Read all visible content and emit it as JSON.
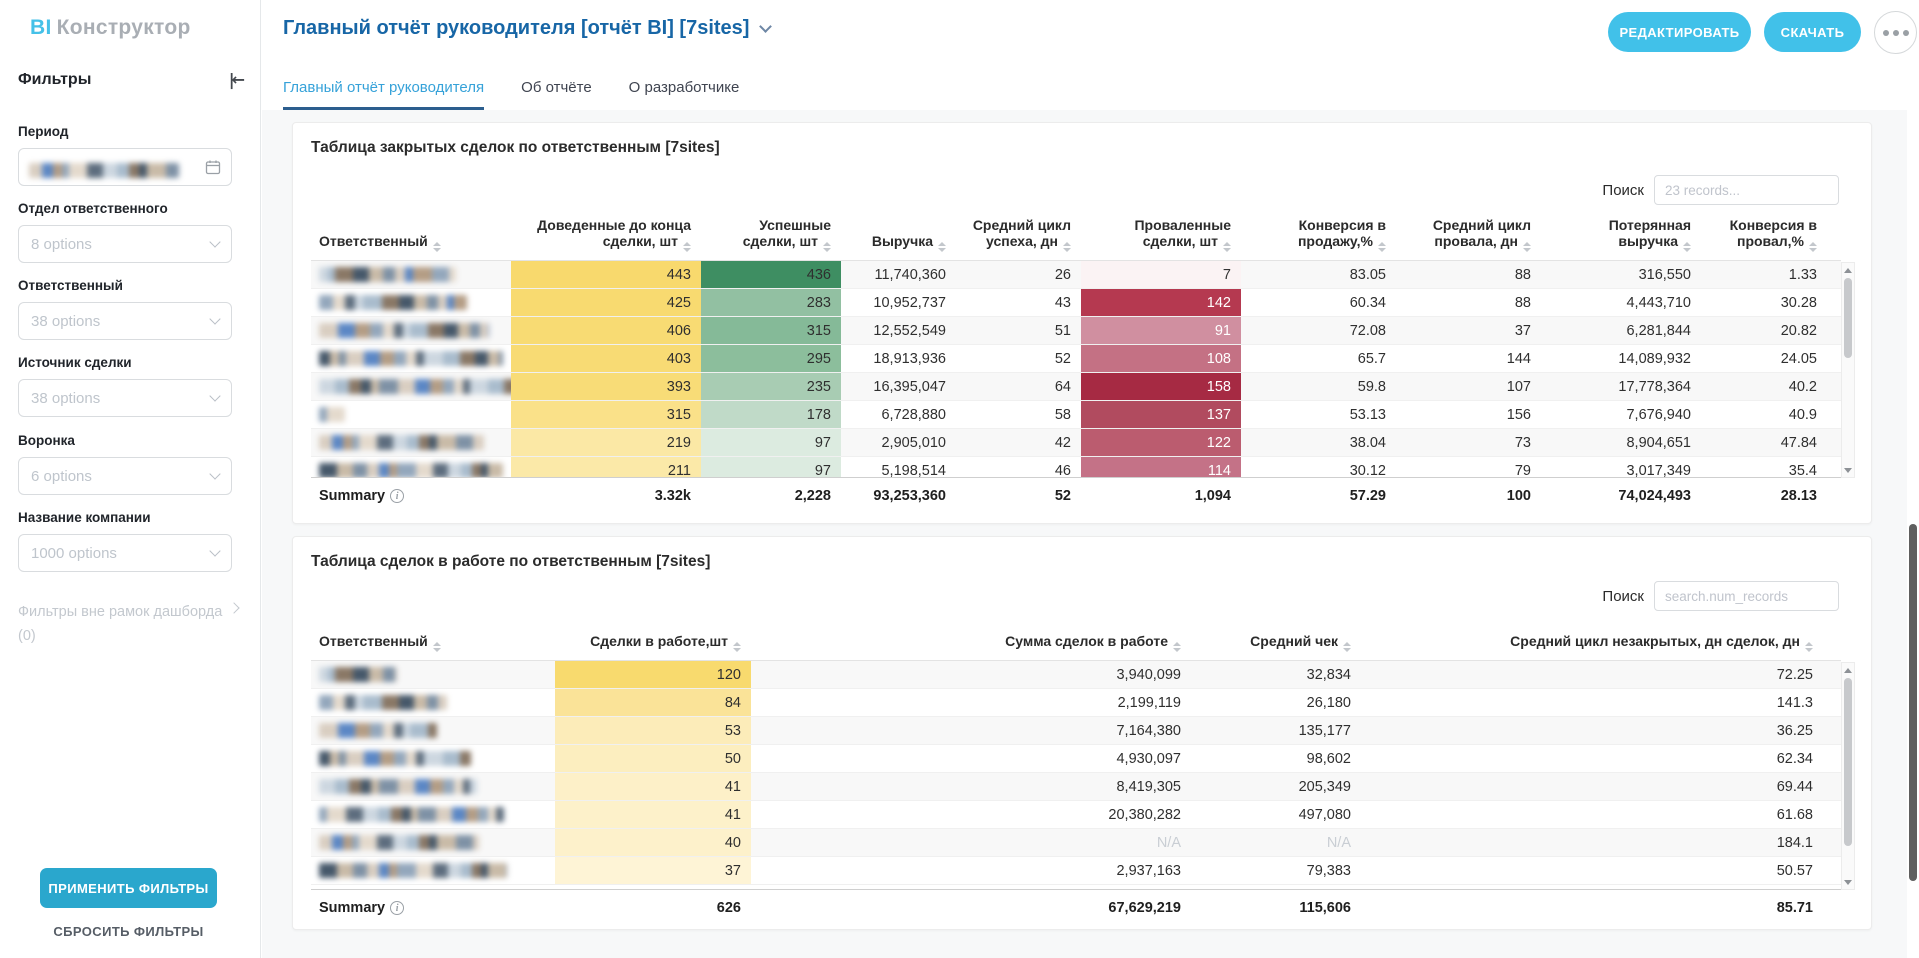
{
  "brand": {
    "bi": "BI",
    "name": "Конструктор"
  },
  "header": {
    "title": "Главный отчёт руководителя [отчёт BI] [7sites]",
    "edit_button": "РЕДАКТИРОВАТЬ",
    "download_button": "СКАЧАТЬ"
  },
  "tabs": [
    {
      "label": "Главный отчёт руководителя",
      "active": true
    },
    {
      "label": "Об отчёте",
      "active": false
    },
    {
      "label": "О разработчике",
      "active": false
    }
  ],
  "sidebar": {
    "title": "Фильтры",
    "filters": [
      {
        "label": "Период",
        "type": "date",
        "value": ""
      },
      {
        "label": "Отдел ответственного",
        "type": "select",
        "value": "8 options"
      },
      {
        "label": "Ответственный",
        "type": "select",
        "value": "38 options"
      },
      {
        "label": "Источник сделки",
        "type": "select",
        "value": "38 options"
      },
      {
        "label": "Воронка",
        "type": "select",
        "value": "6 options"
      },
      {
        "label": "Название компании",
        "type": "select",
        "value": "1000 options"
      }
    ],
    "external_filters_label": "Фильтры вне рамок дашборда",
    "external_filters_count": "(0)",
    "apply_button": "ПРИМЕНИТЬ ФИЛЬТРЫ",
    "reset_button": "СБРОСИТЬ ФИЛЬТРЫ"
  },
  "colors": {
    "accent_blue": "#41c1e9",
    "apply_button_blue": "#2aa7cd",
    "title_blue": "#1766a6",
    "active_tab_blue": "#36a2d9",
    "tab_underline": "#2c5e8e"
  },
  "table1": {
    "title": "Таблица закрытых сделок по ответственным [7sites]",
    "search_label": "Поиск",
    "search_placeholder": "23 records...",
    "columns": [
      "Ответственный",
      "Доведенные до конца сделки, шт",
      "Успешные сделки, шт",
      "Выручка",
      "Средний цикл успеха, дн",
      "Проваленные сделки, шт",
      "Конверсия в продажу,%",
      "Средний цикл провала, дн",
      "Потерянная выручка",
      "Конверсия в провал,%"
    ],
    "rows": [
      {
        "values": [
          "443",
          "436",
          "11,740,360",
          "26",
          "7",
          "83.05",
          "88",
          "316,550",
          "1.33"
        ],
        "done_bg": "#f8d96d",
        "success_bg": "#3e8e62",
        "failed_bg": "#fbf3f4",
        "failed_light_text": false
      },
      {
        "values": [
          "425",
          "283",
          "10,952,737",
          "43",
          "142",
          "60.34",
          "88",
          "4,443,710",
          "30.28"
        ],
        "done_bg": "#f8da70",
        "success_bg": "#92c0a2",
        "failed_bg": "#b53950",
        "failed_light_text": true
      },
      {
        "values": [
          "406",
          "315",
          "12,552,549",
          "51",
          "91",
          "72.08",
          "37",
          "6,281,844",
          "20.82"
        ],
        "done_bg": "#f8db73",
        "success_bg": "#85ba98",
        "failed_bg": "#d08fa0",
        "failed_light_text": true
      },
      {
        "values": [
          "403",
          "295",
          "18,913,936",
          "52",
          "108",
          "65.7",
          "144",
          "14,089,932",
          "24.05"
        ],
        "done_bg": "#f8db74",
        "success_bg": "#8cbe9c",
        "failed_bg": "#c47184",
        "failed_light_text": true
      },
      {
        "values": [
          "393",
          "235",
          "16,395,047",
          "64",
          "158",
          "59.8",
          "107",
          "17,778,364",
          "40.2"
        ],
        "done_bg": "#f8dc77",
        "success_bg": "#a8ccb3",
        "failed_bg": "#a62a43",
        "failed_light_text": true
      },
      {
        "values": [
          "315",
          "178",
          "6,728,880",
          "58",
          "137",
          "53.13",
          "156",
          "7,676,940",
          "40.9"
        ],
        "done_bg": "#fae189",
        "success_bg": "#c0dac8",
        "failed_bg": "#b14b5f",
        "failed_light_text": true
      },
      {
        "values": [
          "219",
          "97",
          "2,905,010",
          "42",
          "122",
          "38.04",
          "73",
          "8,904,651",
          "47.84"
        ],
        "done_bg": "#fbe8a5",
        "success_bg": "#dcebe0",
        "failed_bg": "#bb5c6f",
        "failed_light_text": true
      },
      {
        "values": [
          "211",
          "97",
          "5,198,514",
          "46",
          "114",
          "30.12",
          "79",
          "3,017,349",
          "35.4"
        ],
        "done_bg": "#fbe9a8",
        "success_bg": "#dcebe0",
        "failed_bg": "#c47287",
        "failed_light_text": true
      }
    ],
    "summary_label": "Summary",
    "summary": [
      "3.32k",
      "2,228",
      "93,253,360",
      "52",
      "1,094",
      "57.29",
      "100",
      "74,024,493",
      "28.13"
    ]
  },
  "table2": {
    "title": "Таблица сделок в работе по ответственным [7sites]",
    "search_label": "Поиск",
    "search_placeholder": "search.num_records",
    "columns": [
      "Ответственный",
      "Сделки в работе,шт",
      "Сумма сделок в работе",
      "Средний чек",
      "Средний цикл незакрытых, дн сделок, дн"
    ],
    "rows": [
      {
        "values": [
          "120",
          "3,940,099",
          "32,834",
          "72.25"
        ],
        "work_bg": "#f8da6e"
      },
      {
        "values": [
          "84",
          "2,199,119",
          "26,180",
          "141.3"
        ],
        "work_bg": "#fae398"
      },
      {
        "values": [
          "53",
          "7,164,380",
          "135,177",
          "36.25"
        ],
        "work_bg": "#fcecb9"
      },
      {
        "values": [
          "50",
          "4,930,097",
          "98,602",
          "62.34"
        ],
        "work_bg": "#fceebf"
      },
      {
        "values": [
          "41",
          "8,419,305",
          "205,349",
          "69.44"
        ],
        "work_bg": "#fdf0c8"
      },
      {
        "values": [
          "41",
          "20,380,282",
          "497,080",
          "61.68"
        ],
        "work_bg": "#fdf1ca"
      },
      {
        "values": [
          "40",
          "N/A",
          "N/A",
          "184.1"
        ],
        "work_bg": "#fdf1cb"
      },
      {
        "values": [
          "37",
          "2,937,163",
          "79,383",
          "50.57"
        ],
        "work_bg": "#fef4d6"
      }
    ],
    "summary_label": "Summary",
    "summary": [
      "626",
      "67,629,219",
      "115,606",
      "85.71"
    ]
  }
}
